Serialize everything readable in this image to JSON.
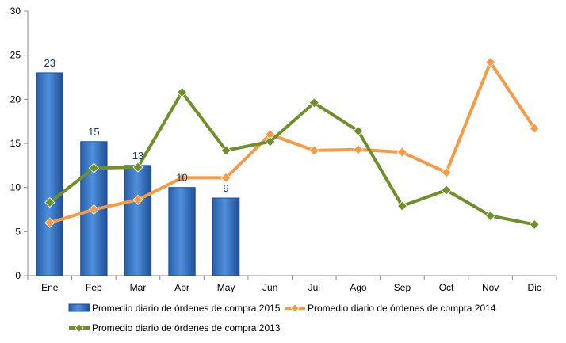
{
  "chart_data": {
    "type": "bar+line",
    "title": "",
    "xlabel": "",
    "ylabel": "",
    "ylim": [
      0,
      30
    ],
    "yticks": [
      0,
      5,
      10,
      15,
      20,
      25,
      30
    ],
    "grid": false,
    "legend_position": "bottom",
    "categories": [
      "Ene",
      "Feb",
      "Mar",
      "Abr",
      "May",
      "Jun",
      "Jul",
      "Ago",
      "Sep",
      "Oct",
      "Nov",
      "Dic"
    ],
    "series": [
      {
        "name": "Promedio diario de órdenes de compra 2015",
        "kind": "bar",
        "color": "#2e6fc0",
        "values": [
          23,
          15.2,
          12.5,
          10,
          8.8,
          null,
          null,
          null,
          null,
          null,
          null,
          null
        ],
        "labels": [
          "23",
          "15",
          "13",
          "10",
          "9",
          "",
          "",
          "",
          "",
          "",
          "",
          ""
        ]
      },
      {
        "name": "Promedio diario de órdenes de compra 2014",
        "kind": "line",
        "marker": "diamond",
        "color": "#f59a45",
        "values": [
          6,
          7.5,
          8.6,
          11.1,
          11.1,
          16,
          14.2,
          14.3,
          14,
          11.7,
          24.2,
          16.7
        ]
      },
      {
        "name": "Promedio diario de órdenes de compra 2013",
        "kind": "line",
        "marker": "diamond",
        "color": "#6f8f2b",
        "values": [
          8.3,
          12.2,
          12.3,
          20.8,
          14.2,
          15.2,
          19.6,
          16.4,
          7.9,
          9.7,
          6.8,
          5.8
        ]
      }
    ]
  }
}
